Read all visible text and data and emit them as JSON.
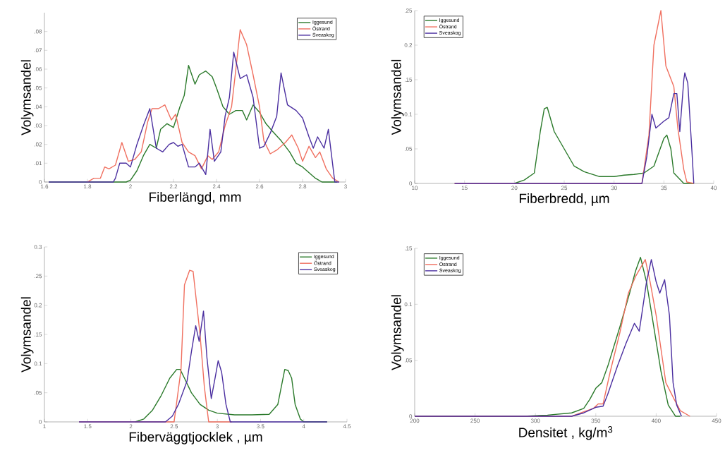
{
  "chart_data": [
    {
      "type": "line",
      "xlabel": "Fiberlängd, mm",
      "ylabel": "Volymsandel",
      "legend": "top right",
      "xlim": [
        1.6,
        3
      ],
      "ylim": [
        0,
        0.09
      ],
      "xticks": [
        1.6,
        1.8,
        2,
        2.2,
        2.4,
        2.6,
        2.8,
        3
      ],
      "yticks": [
        0,
        {
          "value": 0.01,
          "label": ".01"
        },
        {
          "value": 0.02,
          "label": ".02"
        },
        {
          "value": 0.03,
          "label": ".03"
        },
        {
          "value": 0.04,
          "label": ".04"
        },
        {
          "value": 0.05,
          "label": ".05"
        },
        {
          "value": 0.06,
          "label": ".06"
        },
        {
          "value": 0.07,
          "label": ".07"
        },
        {
          "value": 0.08,
          "label": ".08"
        }
      ],
      "series": [
        {
          "name": "Iggesund",
          "color": "#2b7a2b",
          "x": [
            1.62,
            1.98,
            2.0,
            2.03,
            2.06,
            2.09,
            2.12,
            2.14,
            2.17,
            2.2,
            2.23,
            2.25,
            2.27,
            2.3,
            2.32,
            2.35,
            2.38,
            2.4,
            2.43,
            2.46,
            2.49,
            2.52,
            2.54,
            2.57,
            2.6,
            2.63,
            2.66,
            2.7,
            2.74,
            2.77,
            2.8,
            2.83,
            2.86,
            2.89,
            2.96
          ],
          "values": [
            0,
            0,
            0.001,
            0.006,
            0.014,
            0.02,
            0.018,
            0.028,
            0.031,
            0.029,
            0.04,
            0.046,
            0.062,
            0.052,
            0.057,
            0.059,
            0.056,
            0.05,
            0.04,
            0.036,
            0.038,
            0.038,
            0.033,
            0.041,
            0.037,
            0.031,
            0.027,
            0.022,
            0.016,
            0.01,
            0.008,
            0.005,
            0.002,
            0,
            0
          ]
        },
        {
          "name": "Östrand",
          "color": "#f07060",
          "x": [
            1.8,
            1.83,
            1.86,
            1.88,
            1.9,
            1.93,
            1.96,
            1.99,
            2.02,
            2.05,
            2.08,
            2.1,
            2.13,
            2.16,
            2.19,
            2.21,
            2.24,
            2.27,
            2.3,
            2.33,
            2.36,
            2.38,
            2.41,
            2.44,
            2.47,
            2.49,
            2.51,
            2.54,
            2.57,
            2.6,
            2.62,
            2.65,
            2.68,
            2.72,
            2.75,
            2.78,
            2.8,
            2.83,
            2.86,
            2.88,
            2.91,
            2.94,
            2.97
          ],
          "values": [
            0,
            0.002,
            0.002,
            0.008,
            0.007,
            0.009,
            0.021,
            0.011,
            0.012,
            0.016,
            0.032,
            0.039,
            0.039,
            0.041,
            0.033,
            0.036,
            0.021,
            0.016,
            0.014,
            0.007,
            0.014,
            0.012,
            0.016,
            0.03,
            0.04,
            0.06,
            0.081,
            0.073,
            0.057,
            0.04,
            0.022,
            0.015,
            0.017,
            0.021,
            0.025,
            0.018,
            0.011,
            0.019,
            0.013,
            0.016,
            0.007,
            0.002,
            0
          ]
        },
        {
          "name": "Sveaskog",
          "color": "#4b2fa0",
          "x": [
            1.62,
            1.92,
            1.93,
            1.95,
            1.98,
            2.0,
            2.03,
            2.06,
            2.09,
            2.12,
            2.15,
            2.18,
            2.2,
            2.22,
            2.24,
            2.27,
            2.3,
            2.32,
            2.35,
            2.37,
            2.39,
            2.42,
            2.44,
            2.46,
            2.48,
            2.51,
            2.54,
            2.57,
            2.6,
            2.62,
            2.65,
            2.68,
            2.7,
            2.73,
            2.77,
            2.8,
            2.83,
            2.85,
            2.87,
            2.9,
            2.92,
            2.95,
            2.97
          ],
          "values": [
            0,
            0,
            0.002,
            0.01,
            0.01,
            0.008,
            0.02,
            0.03,
            0.039,
            0.018,
            0.016,
            0.02,
            0.021,
            0.019,
            0.02,
            0.008,
            0.008,
            0.01,
            0.004,
            0.028,
            0.011,
            0.016,
            0.035,
            0.045,
            0.069,
            0.055,
            0.057,
            0.045,
            0.018,
            0.019,
            0.026,
            0.035,
            0.058,
            0.041,
            0.038,
            0.034,
            0.024,
            0.018,
            0.024,
            0.018,
            0.028,
            0,
            0
          ]
        }
      ]
    },
    {
      "type": "line",
      "xlabel": "Fiberbredd, µm",
      "ylabel": "Volymsandel",
      "legend": "top left",
      "xlim": [
        10,
        40
      ],
      "ylim": [
        0,
        0.25
      ],
      "xticks": [
        10,
        15,
        20,
        25,
        30,
        35,
        40
      ],
      "yticks": [
        0,
        {
          "value": 0.05,
          "label": ".05"
        },
        {
          "value": 0.1,
          "label": "0.1"
        },
        {
          "value": 0.15,
          "label": ".15"
        },
        {
          "value": 0.2,
          "label": "0.2"
        },
        {
          "value": 0.25,
          "label": ".25"
        }
      ],
      "series": [
        {
          "name": "Iggesund",
          "color": "#2b7a2b",
          "x": [
            20,
            21,
            22,
            22.6,
            23,
            23.3,
            24,
            25,
            26,
            27,
            28.5,
            30,
            31,
            32,
            33,
            34,
            35,
            35.3,
            35.7,
            36,
            37,
            38
          ],
          "values": [
            0,
            0.005,
            0.015,
            0.075,
            0.108,
            0.11,
            0.075,
            0.05,
            0.025,
            0.017,
            0.01,
            0.01,
            0.012,
            0.013,
            0.015,
            0.025,
            0.065,
            0.07,
            0.05,
            0.015,
            0,
            0
          ]
        },
        {
          "name": "Östrand",
          "color": "#f07060",
          "x": [
            14,
            32.8,
            33.5,
            34,
            34.7,
            35.2,
            36,
            36.4,
            37,
            37.3,
            38
          ],
          "values": [
            0,
            0,
            0.07,
            0.2,
            0.25,
            0.17,
            0.14,
            0.08,
            0.02,
            0.002,
            0
          ]
        },
        {
          "name": "Sveaskog",
          "color": "#4b2fa0",
          "x": [
            14,
            32.8,
            33.3,
            33.8,
            34.2,
            35,
            35.5,
            36,
            36.3,
            36.6,
            37,
            37.1,
            37.4,
            37.8,
            38
          ],
          "values": [
            0,
            0,
            0.04,
            0.1,
            0.08,
            0.09,
            0.095,
            0.13,
            0.13,
            0.075,
            0.15,
            0.16,
            0.145,
            0.05,
            0
          ]
        }
      ]
    },
    {
      "type": "line",
      "xlabel": "Fiberväggtjocklek , µm",
      "ylabel": "Volymsandel",
      "legend": "top right",
      "xlim": [
        1,
        4.5
      ],
      "ylim": [
        0,
        0.3
      ],
      "xticks": [
        1,
        1.5,
        2,
        2.5,
        3,
        3.5,
        4,
        4.5
      ],
      "yticks": [
        0,
        {
          "value": 0.05,
          "label": ".05"
        },
        {
          "value": 0.1,
          "label": "0.1"
        },
        {
          "value": 0.15,
          "label": ".15"
        },
        {
          "value": 0.2,
          "label": "0.2"
        },
        {
          "value": 0.25,
          "label": ".25"
        },
        {
          "value": 0.3,
          "label": "0.3"
        }
      ],
      "series": [
        {
          "name": "Iggesund",
          "color": "#2b7a2b",
          "x": [
            2.05,
            2.15,
            2.25,
            2.35,
            2.45,
            2.53,
            2.57,
            2.62,
            2.7,
            2.8,
            2.9,
            3.0,
            3.2,
            3.4,
            3.6,
            3.7,
            3.78,
            3.82,
            3.86,
            3.9,
            3.96,
            4.0,
            4.27
          ],
          "values": [
            0,
            0.005,
            0.02,
            0.045,
            0.075,
            0.09,
            0.09,
            0.075,
            0.05,
            0.03,
            0.02,
            0.015,
            0.012,
            0.012,
            0.013,
            0.03,
            0.09,
            0.088,
            0.075,
            0.03,
            0.005,
            0,
            0
          ]
        },
        {
          "name": "Östrand",
          "color": "#f07060",
          "x": [
            1.4,
            2.5,
            2.58,
            2.62,
            2.68,
            2.72,
            2.8,
            2.85,
            2.9,
            3.17
          ],
          "values": [
            0,
            0,
            0.09,
            0.235,
            0.26,
            0.258,
            0.15,
            0.06,
            0,
            0
          ]
        },
        {
          "name": "Sveaskog",
          "color": "#4b2fa0",
          "x": [
            1.4,
            2.4,
            2.48,
            2.55,
            2.65,
            2.7,
            2.75,
            2.79,
            2.84,
            2.88,
            2.93,
            2.98,
            3.01,
            3.05,
            3.1,
            3.15,
            4.27
          ],
          "values": [
            0,
            0,
            0.01,
            0.03,
            0.07,
            0.12,
            0.165,
            0.138,
            0.19,
            0.11,
            0.04,
            0.08,
            0.105,
            0.085,
            0.03,
            0,
            0
          ]
        }
      ]
    },
    {
      "type": "line",
      "xlabel": "Densitet , kg/m$^{3}$",
      "ylabel": "Volymsandel",
      "legend": "top left",
      "xlim": [
        200,
        450
      ],
      "ylim": [
        0,
        0.15
      ],
      "xticks": [
        200,
        250,
        300,
        350,
        400,
        450
      ],
      "yticks": [
        0,
        {
          "value": 0.05,
          "label": ".05"
        },
        {
          "value": 0.1,
          "label": "0.1"
        },
        {
          "value": 0.15,
          "label": ".15"
        }
      ],
      "series": [
        {
          "name": "Iggesund",
          "color": "#2b7a2b",
          "x": [
            200,
            290,
            310,
            330,
            340,
            345,
            350,
            355,
            360,
            370,
            378,
            383,
            387,
            392,
            398,
            404,
            410,
            416,
            420
          ],
          "values": [
            0,
            0,
            0.001,
            0.003,
            0.007,
            0.015,
            0.025,
            0.03,
            0.045,
            0.08,
            0.11,
            0.13,
            0.142,
            0.12,
            0.08,
            0.04,
            0.01,
            0,
            0
          ]
        },
        {
          "name": "Östrand",
          "color": "#f07060",
          "x": [
            200,
            330,
            340,
            348,
            352,
            356,
            362,
            370,
            377,
            383,
            391,
            395,
            400,
            404,
            408,
            415,
            420,
            428
          ],
          "values": [
            0,
            0,
            0.004,
            0.007,
            0.011,
            0.011,
            0.04,
            0.075,
            0.11,
            0.125,
            0.14,
            0.12,
            0.09,
            0.06,
            0.03,
            0.015,
            0.005,
            0
          ]
        },
        {
          "name": "Sveaskog",
          "color": "#4b2fa0",
          "x": [
            200,
            330,
            340,
            350,
            356,
            360,
            368,
            375,
            382,
            386,
            390,
            392,
            396,
            400,
            403,
            407,
            411,
            414,
            417,
            421
          ],
          "values": [
            0,
            0,
            0.003,
            0.008,
            0.009,
            0.02,
            0.045,
            0.065,
            0.083,
            0.076,
            0.105,
            0.12,
            0.14,
            0.12,
            0.11,
            0.122,
            0.09,
            0.03,
            0.01,
            0
          ]
        }
      ]
    }
  ]
}
